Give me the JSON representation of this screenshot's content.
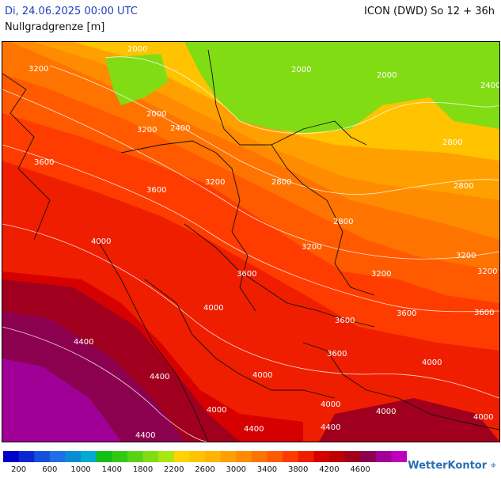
{
  "header": {
    "date": "Di, 24.06.2025 00:00 UTC",
    "model": "ICON (DWD) So 12 + 36h",
    "subtitle": "Nullgradgrenze [m]"
  },
  "contours": [
    "2000",
    "2400",
    "2800",
    "3200",
    "3600",
    "4000",
    "4400"
  ],
  "legend": {
    "colors": [
      "#0000c8",
      "#0a28d2",
      "#1450dc",
      "#1e6ee6",
      "#0a8cd2",
      "#00aad2",
      "#14be14",
      "#32c814",
      "#5ad214",
      "#82dc14",
      "#aae614",
      "#ffd200",
      "#ffc300",
      "#ffb400",
      "#ffa000",
      "#ff8c00",
      "#ff7300",
      "#ff5a00",
      "#ff3c00",
      "#f01e00",
      "#d70000",
      "#be0000",
      "#a0001e",
      "#8c0050",
      "#a00096",
      "#be00be"
    ],
    "ticks": [
      "200",
      "600",
      "1000",
      "1400",
      "1800",
      "2200",
      "2600",
      "3000",
      "3400",
      "3800",
      "4200",
      "4600"
    ]
  },
  "brand": {
    "name": "WetterKontor",
    "icon": "map-pin-icon"
  }
}
